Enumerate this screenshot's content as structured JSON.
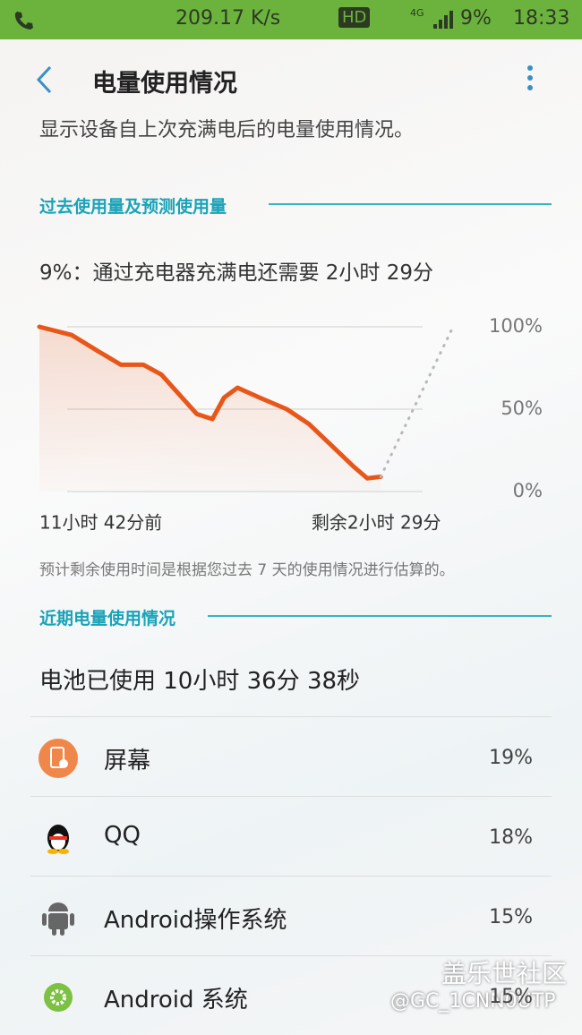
{
  "status_bar": {
    "speed": "209.17 K/s",
    "hd": "HD",
    "network": "4G",
    "battery": "9%",
    "time": "18:33"
  },
  "header": {
    "title": "电量使用情况"
  },
  "description": "显示设备自上次充满电后的电量使用情况。",
  "section1": "过去使用量及预测使用量",
  "charge_info": "9%：通过充电器充满电还需要 2小时 29分",
  "chart_data": {
    "type": "line",
    "x": [
      -11.7,
      -10.59,
      -9.67,
      -8.91,
      -8.14,
      -7.52,
      -6.91,
      -6.3,
      -5.77,
      -5.37,
      -4.91,
      -4.15,
      -3.22,
      -2.46,
      -1.69,
      -0.92,
      -0.46,
      0,
      2.48
    ],
    "xlim": [
      -11.7,
      2.48
    ],
    "xticks": [
      {
        "value": -11.7,
        "label": "11小时 42分前"
      },
      {
        "value": 0,
        "label": "剩余2小时 29分"
      }
    ],
    "series": [
      {
        "color": "#e8571a",
        "values": [
          100,
          95,
          85,
          77,
          77,
          71,
          59,
          47,
          44,
          57,
          63,
          57,
          50,
          41,
          28,
          15,
          8,
          9,
          null
        ]
      },
      {
        "color": "#b8b8b8",
        "values": [
          null,
          null,
          null,
          null,
          null,
          null,
          null,
          null,
          null,
          null,
          null,
          null,
          null,
          null,
          null,
          null,
          null,
          9,
          100
        ]
      }
    ],
    "ylim": [
      0,
      100
    ],
    "yticks": [
      {
        "value": 0,
        "label": "0%"
      },
      {
        "value": 50,
        "label": "50%"
      },
      {
        "value": 100,
        "label": "100%"
      }
    ],
    "grid": true
  },
  "note": "预计剩余使用时间是根据您过去 7 天的使用情况进行估算的。",
  "section2": "近期电量使用情况",
  "battery_used": "电池已使用 10小时 36分 38秒",
  "apps": [
    {
      "name": "屏幕",
      "percent": "19%"
    },
    {
      "name": "QQ",
      "percent": "18%"
    },
    {
      "name": "Android操作系统",
      "percent": "15%"
    },
    {
      "name": "Android 系统",
      "percent": "15%"
    }
  ],
  "watermark": {
    "site": "盖乐世社区",
    "user": "@GC_1CNN0UTP"
  }
}
